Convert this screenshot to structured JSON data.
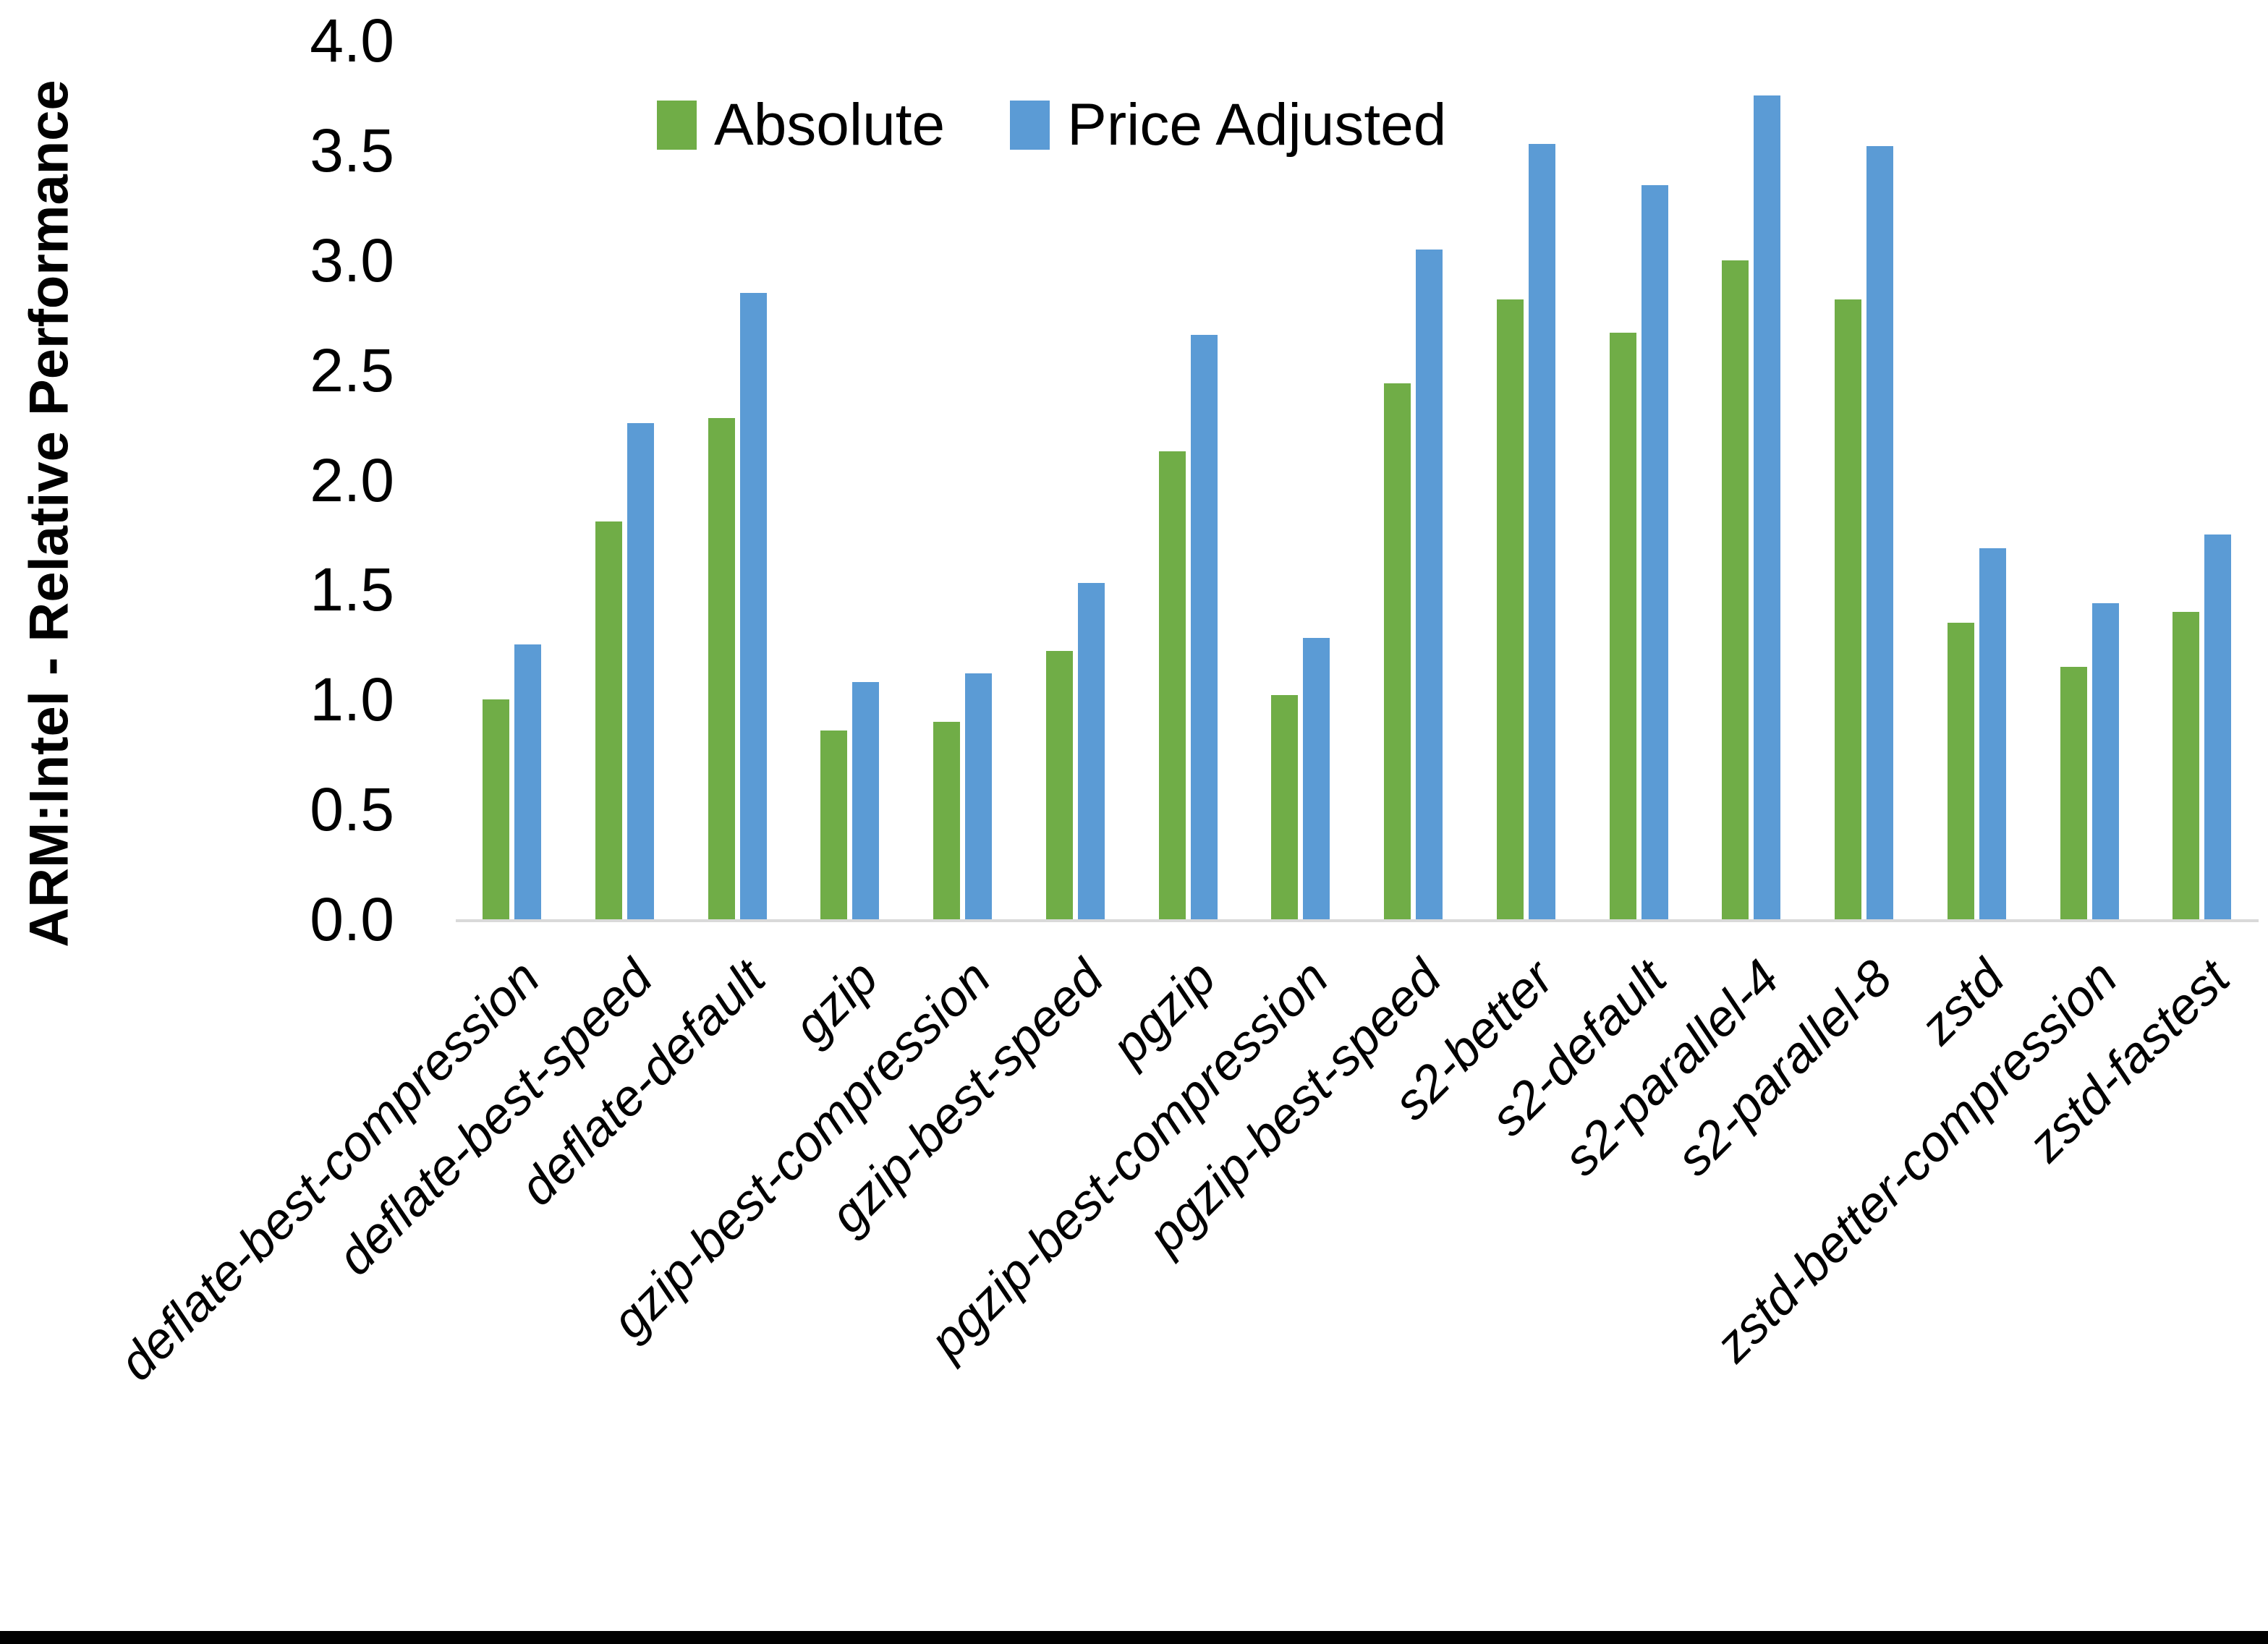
{
  "chart_data": {
    "type": "bar",
    "title": "",
    "xlabel": "",
    "ylabel": "ARM:Intel - Relative Performance",
    "ylim": [
      0.0,
      4.0
    ],
    "ytick_step": 0.5,
    "ytick_labels": [
      "0.0",
      "0.5",
      "1.0",
      "1.5",
      "2.0",
      "2.5",
      "3.0",
      "3.5",
      "4.0"
    ],
    "grid": false,
    "legend_position": "top-center",
    "categories": [
      "deflate-best-compression",
      "deflate-best-speed",
      "deflate-default",
      "gzip",
      "gzip-best-compression",
      "gzip-best-speed",
      "pgzip",
      "pgzip-best-compression",
      "pgzip-best-speed",
      "s2-better",
      "s2-default",
      "s2-parallel-4",
      "s2-parallel-8",
      "zstd",
      "zstd-better-compression",
      "zstd-fastest"
    ],
    "series": [
      {
        "name": "Absolute",
        "color": "#70AD47",
        "values": [
          1.0,
          1.81,
          2.28,
          0.86,
          0.9,
          1.22,
          2.13,
          1.02,
          2.44,
          2.82,
          2.67,
          3.0,
          2.82,
          1.35,
          1.15,
          1.4
        ]
      },
      {
        "name": "Price Adjusted",
        "color": "#5B9BD5",
        "values": [
          1.25,
          2.26,
          2.85,
          1.08,
          1.12,
          1.53,
          2.66,
          1.28,
          3.05,
          3.53,
          3.34,
          3.75,
          3.52,
          1.69,
          1.44,
          1.75
        ]
      }
    ]
  },
  "colors": {
    "background": "#FFFFFF",
    "axis_line": "#D9D9D9",
    "text": "#000000",
    "bottom_border": "#000000"
  }
}
